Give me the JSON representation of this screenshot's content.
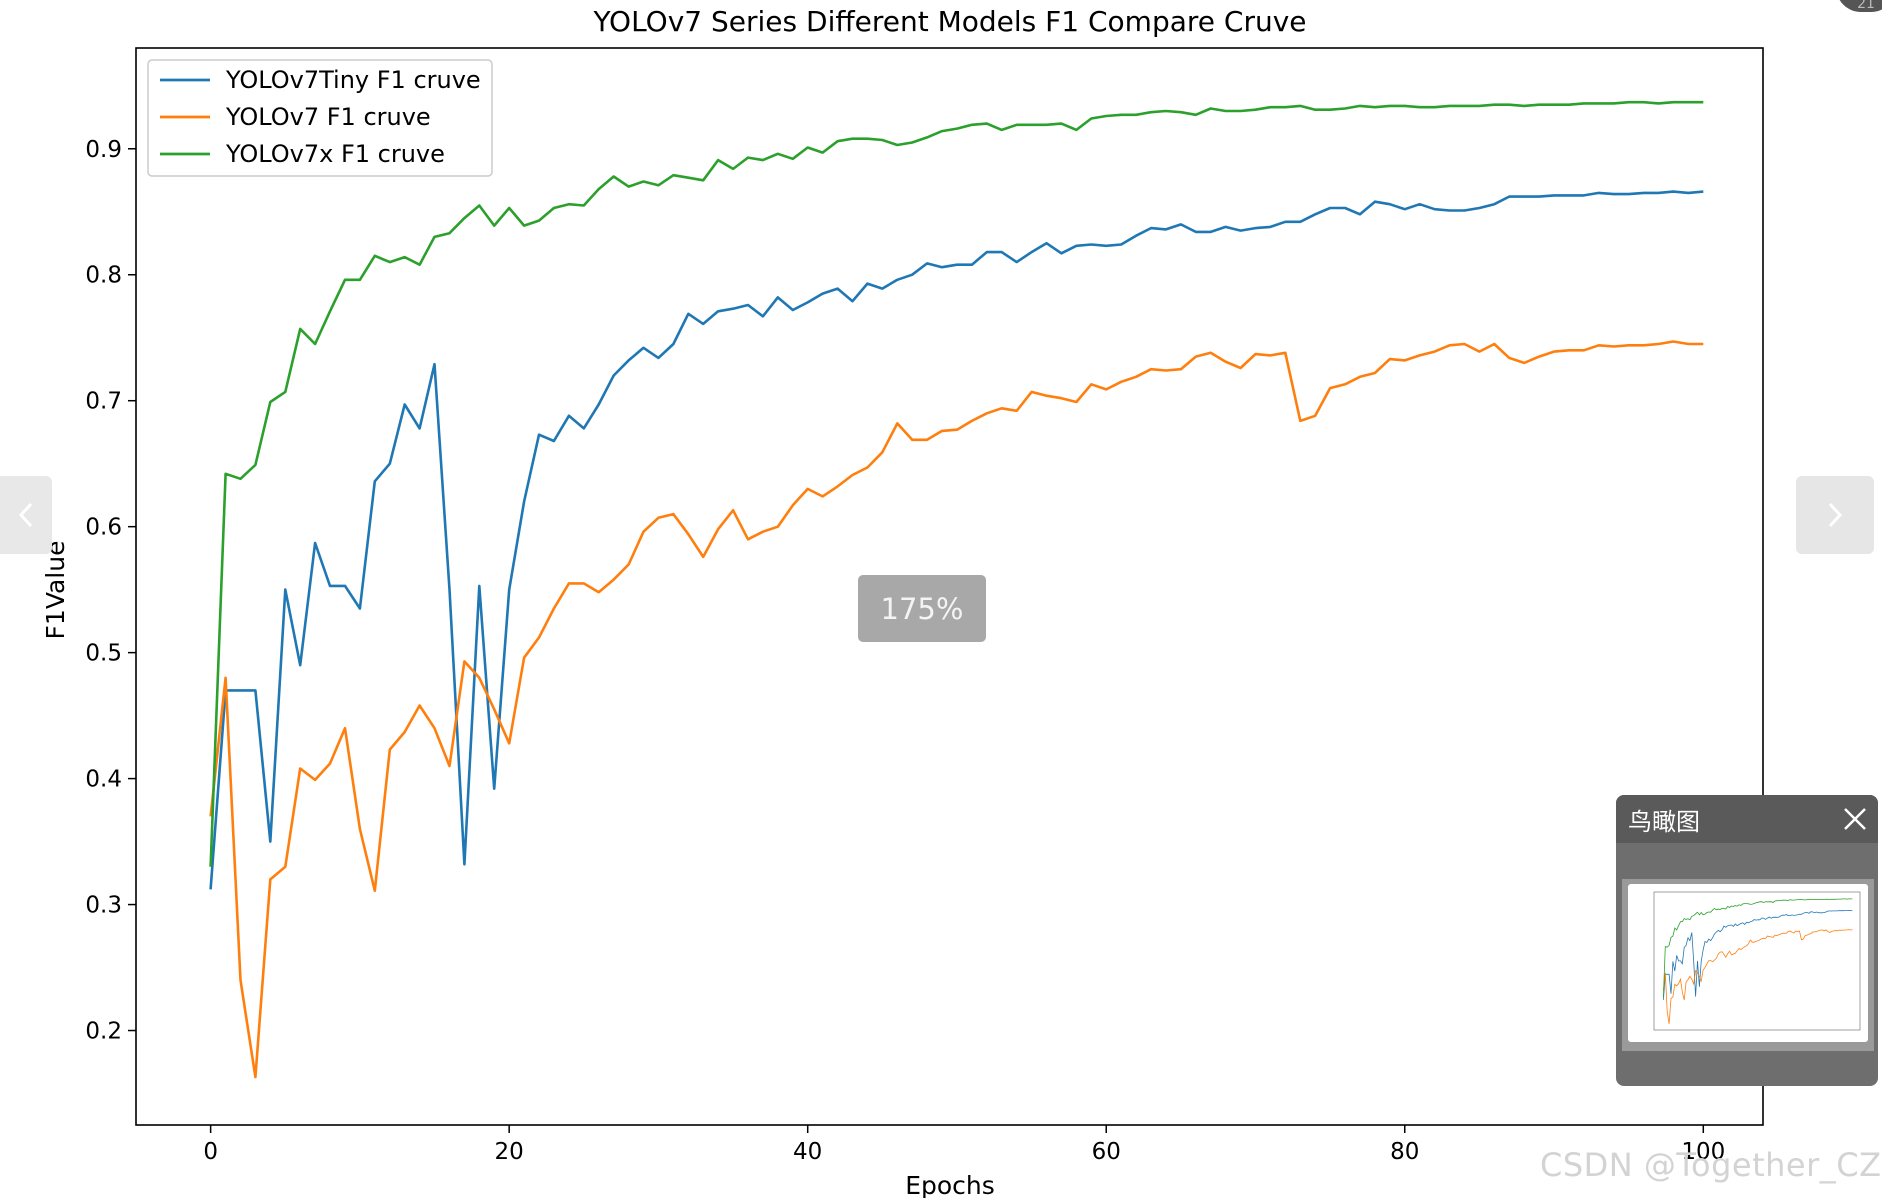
{
  "viewer": {
    "zoom_label": "175%",
    "birdseye_title": "鸟瞰图",
    "watermark": "CSDN @Together_CZ",
    "corner_badge": "21"
  },
  "icons": {
    "prev": "chevron-left-icon",
    "next": "chevron-right-icon",
    "close": "close-icon"
  },
  "chart_data": {
    "type": "line",
    "title": "YOLOv7 Series Different Models F1 Compare Cruve",
    "xlabel": "Epochs",
    "ylabel": "F1Value",
    "xlim": [
      -5,
      104
    ],
    "ylim": [
      0.125,
      0.98
    ],
    "xticks": [
      0,
      20,
      40,
      60,
      80,
      100
    ],
    "yticks": [
      0.2,
      0.3,
      0.4,
      0.5,
      0.6,
      0.7,
      0.8,
      0.9
    ],
    "grid": false,
    "legend_position": "upper left",
    "series": [
      {
        "name": "YOLOv7Tiny F1 cruve",
        "color": "#1f77b4",
        "values": [
          0.312,
          0.47,
          0.47,
          0.47,
          0.35,
          0.55,
          0.49,
          0.587,
          0.553,
          0.553,
          0.535,
          0.636,
          0.65,
          0.697,
          0.678,
          0.729,
          0.55,
          0.332,
          0.553,
          0.392,
          0.55,
          0.62,
          0.673,
          0.668,
          0.688,
          0.678,
          0.697,
          0.72,
          0.732,
          0.742,
          0.734,
          0.745,
          0.769,
          0.761,
          0.771,
          0.773,
          0.776,
          0.767,
          0.782,
          0.772,
          0.778,
          0.785,
          0.789,
          0.779,
          0.793,
          0.789,
          0.796,
          0.8,
          0.809,
          0.806,
          0.808,
          0.808,
          0.818,
          0.818,
          0.81,
          0.818,
          0.825,
          0.817,
          0.823,
          0.824,
          0.823,
          0.824,
          0.831,
          0.837,
          0.836,
          0.84,
          0.834,
          0.834,
          0.838,
          0.835,
          0.837,
          0.838,
          0.842,
          0.842,
          0.848,
          0.853,
          0.853,
          0.848,
          0.858,
          0.856,
          0.852,
          0.856,
          0.852,
          0.851,
          0.851,
          0.853,
          0.856,
          0.862,
          0.862,
          0.862,
          0.863,
          0.863,
          0.863,
          0.865,
          0.864,
          0.864,
          0.865,
          0.865,
          0.866,
          0.865,
          0.866
        ]
      },
      {
        "name": "YOLOv7 F1 cruve",
        "color": "#ff7f0e",
        "values": [
          0.37,
          0.48,
          0.24,
          0.163,
          0.32,
          0.33,
          0.408,
          0.399,
          0.412,
          0.44,
          0.36,
          0.311,
          0.423,
          0.437,
          0.458,
          0.44,
          0.41,
          0.493,
          0.48,
          0.455,
          0.428,
          0.496,
          0.512,
          0.535,
          0.555,
          0.555,
          0.548,
          0.558,
          0.57,
          0.596,
          0.607,
          0.61,
          0.594,
          0.576,
          0.598,
          0.613,
          0.59,
          0.596,
          0.6,
          0.617,
          0.63,
          0.624,
          0.632,
          0.641,
          0.647,
          0.659,
          0.682,
          0.669,
          0.669,
          0.676,
          0.677,
          0.684,
          0.69,
          0.694,
          0.692,
          0.707,
          0.704,
          0.702,
          0.699,
          0.713,
          0.709,
          0.715,
          0.719,
          0.725,
          0.724,
          0.725,
          0.735,
          0.738,
          0.731,
          0.726,
          0.737,
          0.736,
          0.738,
          0.684,
          0.688,
          0.71,
          0.713,
          0.719,
          0.722,
          0.733,
          0.732,
          0.736,
          0.739,
          0.744,
          0.745,
          0.739,
          0.745,
          0.734,
          0.73,
          0.735,
          0.739,
          0.74,
          0.74,
          0.744,
          0.743,
          0.744,
          0.744,
          0.745,
          0.747,
          0.745,
          0.745
        ]
      },
      {
        "name": "YOLOv7x F1 cruve",
        "color": "#2ca02c",
        "values": [
          0.33,
          0.642,
          0.638,
          0.649,
          0.699,
          0.707,
          0.757,
          0.745,
          0.771,
          0.796,
          0.796,
          0.815,
          0.81,
          0.814,
          0.808,
          0.83,
          0.833,
          0.845,
          0.855,
          0.839,
          0.853,
          0.839,
          0.843,
          0.853,
          0.856,
          0.855,
          0.868,
          0.878,
          0.87,
          0.874,
          0.871,
          0.879,
          0.877,
          0.875,
          0.891,
          0.884,
          0.893,
          0.891,
          0.896,
          0.892,
          0.901,
          0.897,
          0.906,
          0.908,
          0.908,
          0.907,
          0.903,
          0.905,
          0.909,
          0.914,
          0.916,
          0.919,
          0.92,
          0.915,
          0.919,
          0.919,
          0.919,
          0.92,
          0.915,
          0.924,
          0.926,
          0.927,
          0.927,
          0.929,
          0.93,
          0.929,
          0.927,
          0.932,
          0.93,
          0.93,
          0.931,
          0.933,
          0.933,
          0.934,
          0.931,
          0.931,
          0.932,
          0.934,
          0.933,
          0.934,
          0.934,
          0.933,
          0.933,
          0.934,
          0.934,
          0.934,
          0.935,
          0.935,
          0.934,
          0.935,
          0.935,
          0.935,
          0.936,
          0.936,
          0.936,
          0.937,
          0.937,
          0.936,
          0.937,
          0.937,
          0.937
        ]
      }
    ]
  }
}
